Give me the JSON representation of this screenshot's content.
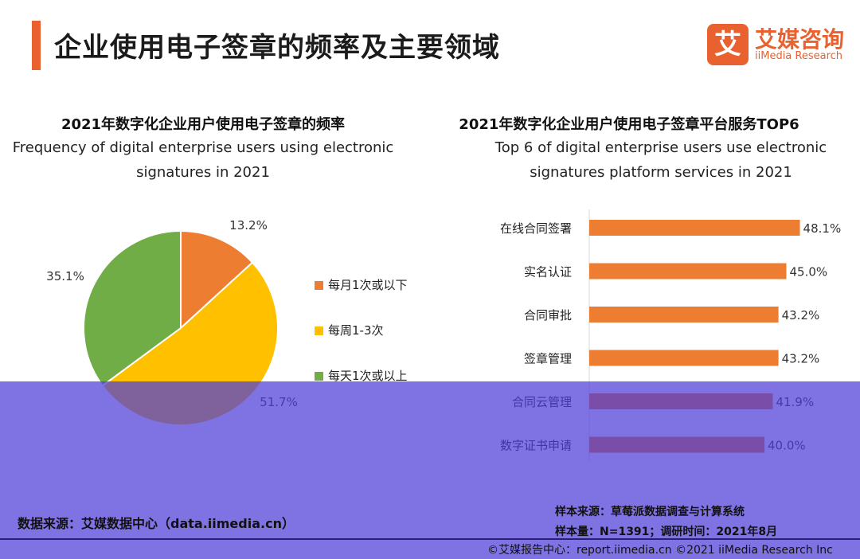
{
  "header": {
    "title": "企业使用电子签章的频率及主要领域",
    "logo_mark": "艾",
    "logo_cn": "艾媒咨询",
    "logo_en": "iiMedia Research"
  },
  "chart_data": [
    {
      "type": "pie",
      "title": "2021年数字化企业用户使用电子签章的频率",
      "subtitle_lines": [
        "Frequency of digital enterprise users using electronic",
        "signatures in 2021"
      ],
      "categories": [
        "每月1次或以下",
        "每周1-3次",
        "每天1次或以上"
      ],
      "values": [
        13.2,
        51.7,
        35.1
      ],
      "labels": [
        "13.2%",
        "51.7%",
        "35.1%"
      ],
      "colors": [
        "#ed7d31",
        "#ffc000",
        "#70ad47"
      ],
      "legend": "right"
    },
    {
      "type": "bar",
      "orientation": "horizontal",
      "title": "2021年数字化企业用户使用电子签章平台服务TOP6",
      "subtitle_lines": [
        "Top 6 of digital enterprise users use electronic",
        "signatures platform services in 2021"
      ],
      "categories": [
        "在线合同签署",
        "实名认证",
        "合同审批",
        "签章管理",
        "合同云管理",
        "数字证书申请"
      ],
      "values": [
        48.1,
        45.0,
        43.2,
        43.2,
        41.9,
        40.0
      ],
      "labels": [
        "48.1%",
        "45.0%",
        "43.2%",
        "43.2%",
        "41.9%",
        "40.0%"
      ],
      "color": "#ed7d31",
      "xlim": [
        0,
        50
      ]
    }
  ],
  "footer": {
    "source": "数据来源：艾媒数据中心（data.iimedia.cn）",
    "method": "样本来源：草莓派数据调查与计算系统",
    "sample": "样本量：N=1391；调研时间：2021年8月",
    "copyright": "©艾媒报告中心：report.iimedia.cn   ©2021  iiMedia Research  Inc"
  }
}
